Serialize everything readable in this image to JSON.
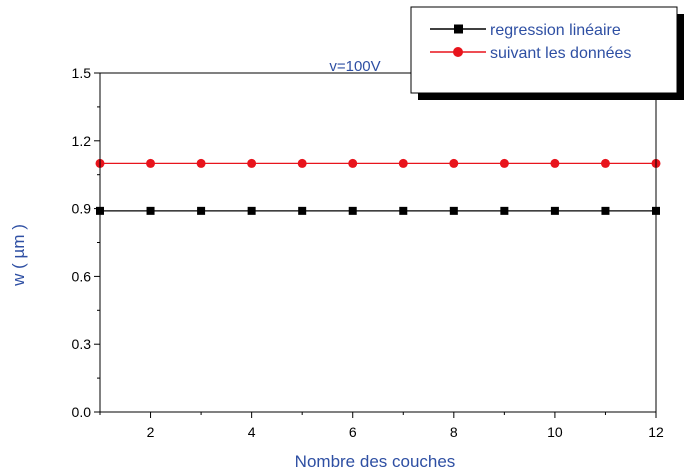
{
  "chart_data": {
    "type": "line",
    "title": "",
    "xlabel": "Nombre des couches",
    "ylabel": "w ( µm )",
    "annotation": "v=100V",
    "xlim": [
      1,
      12
    ],
    "ylim": [
      0.0,
      1.5
    ],
    "x_ticks": [
      2,
      4,
      6,
      8,
      10,
      12
    ],
    "y_ticks": [
      "0.0",
      "0.3",
      "0.6",
      "0.9",
      "1.2",
      "1.5"
    ],
    "x": [
      1,
      2,
      3,
      4,
      5,
      6,
      7,
      8,
      9,
      10,
      11,
      12
    ],
    "grid": false,
    "legend_position": "top-right",
    "series": [
      {
        "name": "regression linéaire",
        "color": "#000000",
        "marker": "square",
        "values": [
          0.89,
          0.89,
          0.89,
          0.89,
          0.89,
          0.89,
          0.89,
          0.89,
          0.89,
          0.89,
          0.89,
          0.89
        ]
      },
      {
        "name": "suivant les données",
        "color": "#e8141c",
        "marker": "circle",
        "values": [
          1.1,
          1.1,
          1.1,
          1.1,
          1.1,
          1.1,
          1.1,
          1.1,
          1.1,
          1.1,
          1.1,
          1.1
        ]
      }
    ]
  }
}
